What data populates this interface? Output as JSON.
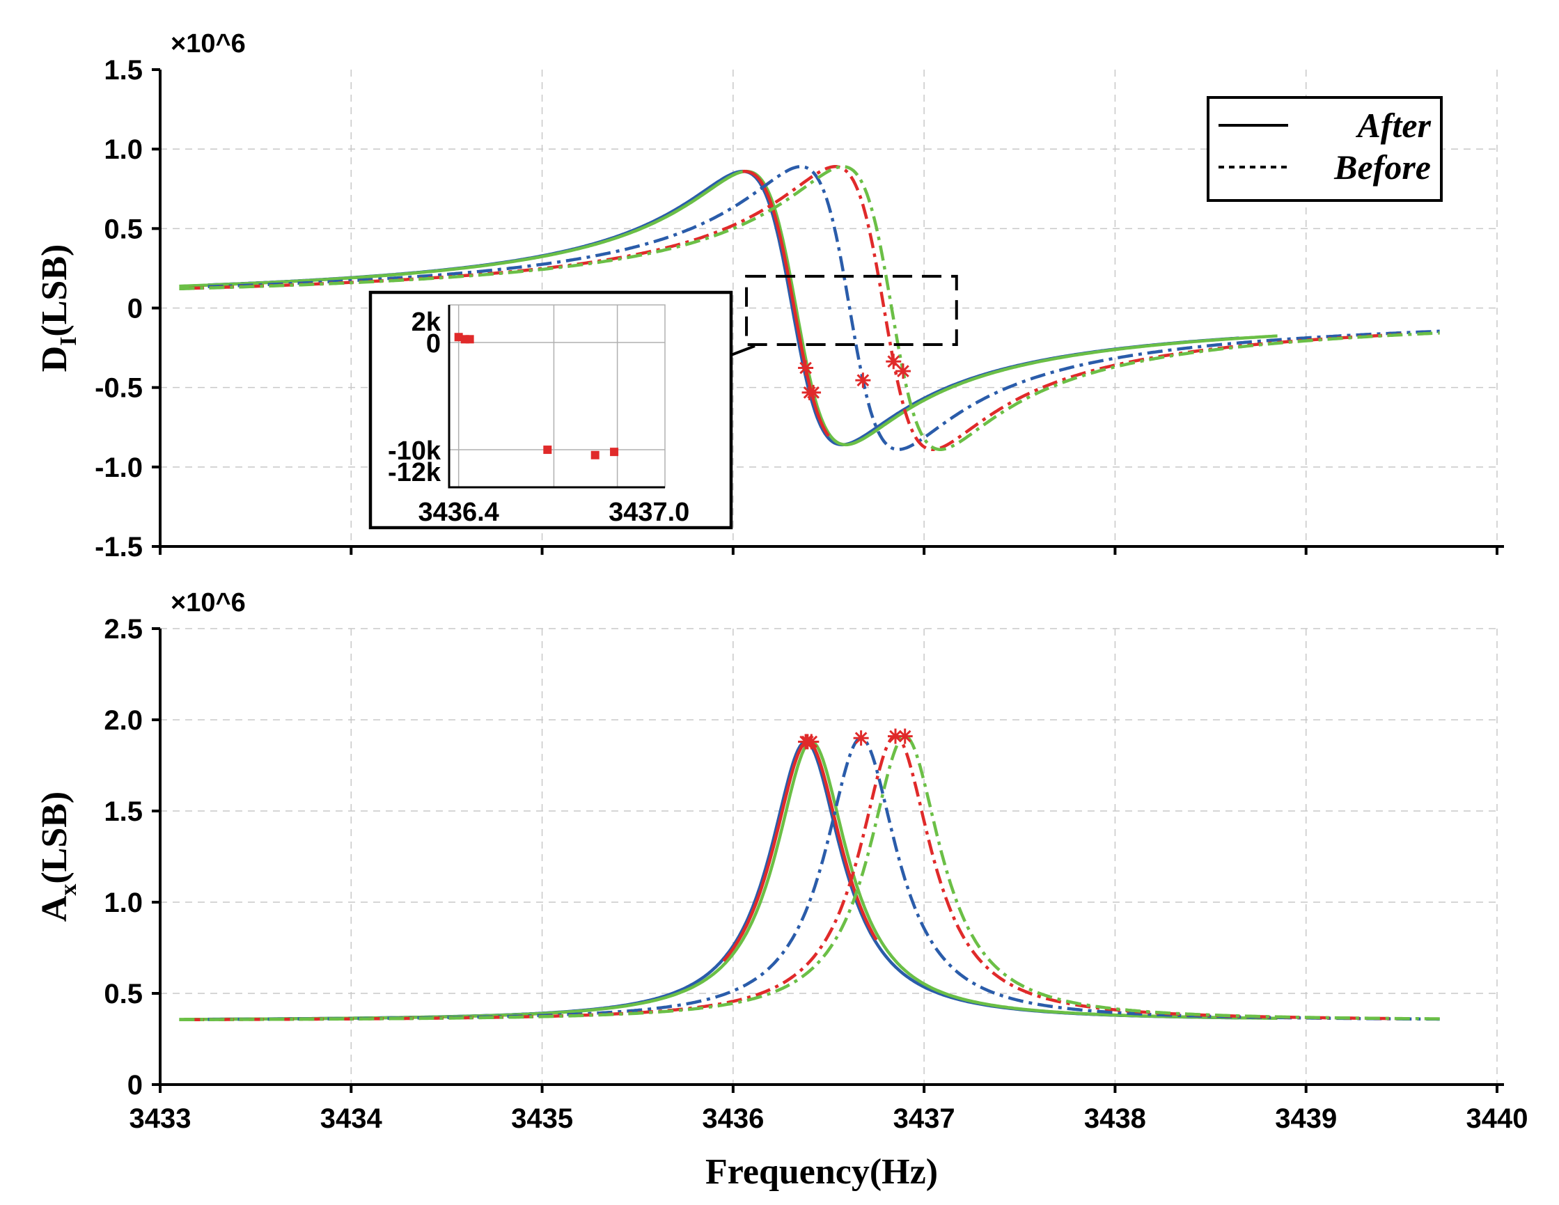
{
  "chart_data": [
    {
      "type": "line",
      "panel": "top",
      "ylabel": "D",
      "ylabel_sub": "I",
      "ylabel_suffix": "(LSB)",
      "multiplier": "×10^6",
      "xlim": [
        3433,
        3440
      ],
      "ylim": [
        -1.5,
        1.5
      ],
      "yticks": [
        "1.5",
        "1.0",
        "0.5",
        "0",
        "-0.5",
        "-1.0",
        "-1.5"
      ],
      "ytick_values": [
        1.5,
        1.0,
        0.5,
        0,
        -0.5,
        -1.0,
        -1.5
      ],
      "legend": {
        "position": "top-right",
        "entries": [
          {
            "label": "After",
            "style": "solid"
          },
          {
            "label": "Before",
            "style": "dotted"
          }
        ]
      },
      "series": [
        {
          "name": "After (blue)",
          "color": "#2a5caa",
          "style": "solid",
          "f0": 3436.31,
          "amp": 0.86,
          "half": 0.26,
          "range": [
            3433.25,
            3438.65
          ],
          "markers": [
            3436.4
          ]
        },
        {
          "name": "After (green)",
          "color": "#6bbf46",
          "style": "solid",
          "f0": 3436.33,
          "amp": 0.86,
          "half": 0.26,
          "range": [
            3433.1,
            3438.85
          ],
          "markers": [
            3436.42
          ]
        },
        {
          "name": "After (red)",
          "color": "#e02a2a",
          "style": "solid",
          "f0": 3436.32,
          "amp": 0.86,
          "half": 0.26,
          "range": [
            3436.05,
            3436.5
          ],
          "markers": [
            3436.38
          ]
        },
        {
          "name": "Before (blue)",
          "color": "#2a5caa",
          "style": "dashdot",
          "f0": 3436.61,
          "amp": 0.89,
          "half": 0.255,
          "range": [
            3433.25,
            3439.7
          ],
          "markers": [
            3436.68
          ]
        },
        {
          "name": "Before (red)",
          "color": "#e02a2a",
          "style": "dashdot",
          "f0": 3436.79,
          "amp": 0.89,
          "half": 0.255,
          "range": [
            3433.15,
            3439.5
          ],
          "markers": [
            3436.84
          ]
        },
        {
          "name": "Before (green)",
          "color": "#6bbf46",
          "style": "dashdot",
          "f0": 3436.83,
          "amp": 0.89,
          "half": 0.255,
          "range": [
            3433.1,
            3439.7
          ],
          "markers": [
            3436.89
          ]
        }
      ],
      "zoom_box": {
        "x": [
          3436.07,
          3437.17
        ],
        "y": [
          -0.23,
          0.2
        ]
      },
      "inset": {
        "xticks": [
          "3436.4",
          "3437.0"
        ],
        "xtick_values": [
          3436.4,
          3437.0
        ],
        "xlim": [
          3436.37,
          3437.05
        ],
        "yticks": [
          "2k",
          "0",
          "-10k",
          "-12k"
        ],
        "ytick_values": [
          2000,
          0,
          -10000,
          -12000
        ],
        "ylim": [
          -13500,
          3500
        ],
        "points": [
          {
            "x": 3436.4,
            "y": 500
          },
          {
            "x": 3436.42,
            "y": 300
          },
          {
            "x": 3436.435,
            "y": 300
          },
          {
            "x": 3436.68,
            "y": -10000
          },
          {
            "x": 3436.83,
            "y": -10500
          },
          {
            "x": 3436.89,
            "y": -10200
          }
        ]
      }
    },
    {
      "type": "line",
      "panel": "bottom",
      "ylabel": "A",
      "ylabel_sub": "x",
      "ylabel_suffix": "(LSB)",
      "multiplier": "×10^6",
      "xlabel": "Frequency(Hz)",
      "xlim": [
        3433,
        3440
      ],
      "ylim": [
        0,
        2.5
      ],
      "xticks": [
        "3433",
        "3434",
        "3435",
        "3436",
        "3437",
        "3438",
        "3439",
        "3440"
      ],
      "xtick_values": [
        3433,
        3434,
        3435,
        3436,
        3437,
        3438,
        3439,
        3440
      ],
      "yticks": [
        "2.5",
        "2.0",
        "1.5",
        "1.0",
        "0.5",
        "0"
      ],
      "ytick_values": [
        2.5,
        2.0,
        1.5,
        1.0,
        0.5,
        0
      ],
      "baseline": 0.35,
      "series": [
        {
          "name": "After (blue)",
          "color": "#2a5caa",
          "style": "solid",
          "f0": 3436.38,
          "peak": 1.88,
          "half": 0.23,
          "range": [
            3433.25,
            3438.65
          ],
          "markers": [
            3436.38
          ]
        },
        {
          "name": "After (green)",
          "color": "#6bbf46",
          "style": "solid",
          "f0": 3436.41,
          "peak": 1.88,
          "half": 0.23,
          "range": [
            3433.1,
            3438.85
          ],
          "markers": [
            3436.41
          ]
        },
        {
          "name": "After (red)",
          "color": "#e02a2a",
          "style": "solid",
          "f0": 3436.39,
          "peak": 1.88,
          "half": 0.23,
          "range": [
            3435.95,
            3436.75
          ],
          "markers": [
            3436.39
          ]
        },
        {
          "name": "Before (blue)",
          "color": "#2a5caa",
          "style": "dashdot",
          "f0": 3436.67,
          "peak": 1.9,
          "half": 0.23,
          "range": [
            3433.25,
            3439.7
          ],
          "markers": [
            3436.67
          ]
        },
        {
          "name": "Before (red)",
          "color": "#e02a2a",
          "style": "dashdot",
          "f0": 3436.85,
          "peak": 1.91,
          "half": 0.23,
          "range": [
            3433.15,
            3439.5
          ],
          "markers": [
            3436.85
          ]
        },
        {
          "name": "Before (green)",
          "color": "#6bbf46",
          "style": "dashdot",
          "f0": 3436.9,
          "peak": 1.91,
          "half": 0.23,
          "range": [
            3433.1,
            3439.7
          ],
          "markers": [
            3436.9
          ]
        }
      ]
    }
  ]
}
